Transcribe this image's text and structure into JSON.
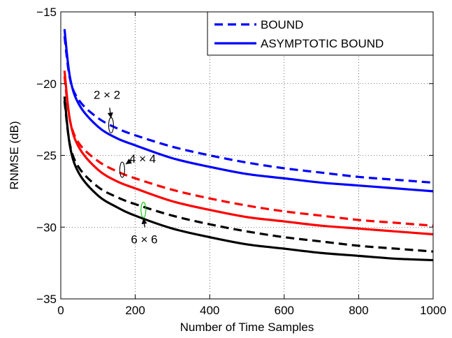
{
  "chart_data": {
    "type": "line",
    "xlabel": "Number of Time Samples",
    "ylabel": "RNMSE (dB)",
    "xlim": [
      0,
      1000
    ],
    "ylim": [
      -35,
      -15
    ],
    "xticks": [
      0,
      200,
      400,
      600,
      800,
      1000
    ],
    "yticks": [
      -35,
      -30,
      -25,
      -20,
      -15
    ],
    "grid": true,
    "legend_position": "top-right",
    "legend": [
      {
        "label": "BOUND",
        "style": "dashed"
      },
      {
        "label": "ASYMPTOTIC BOUND",
        "style": "solid"
      }
    ],
    "x": [
      10,
      25,
      50,
      100,
      150,
      200,
      300,
      400,
      500,
      600,
      700,
      800,
      900,
      1000
    ],
    "series": [
      {
        "group": "2 × 2",
        "style": "dashed",
        "color": "#0000ff",
        "values": [
          -16.7,
          -19.7,
          -21.2,
          -22.4,
          -23.1,
          -23.6,
          -24.4,
          -25.0,
          -25.5,
          -25.9,
          -26.2,
          -26.5,
          -26.7,
          -26.9
        ]
      },
      {
        "group": "2 × 2",
        "style": "solid",
        "color": "#0000ff",
        "values": [
          -16.2,
          -19.6,
          -21.5,
          -23.0,
          -23.8,
          -24.3,
          -25.2,
          -25.8,
          -26.3,
          -26.6,
          -26.9,
          -27.1,
          -27.3,
          -27.5
        ]
      },
      {
        "group": "4 × 4",
        "style": "dashed",
        "color": "#ff0000",
        "values": [
          -19.5,
          -22.6,
          -24.2,
          -25.4,
          -26.1,
          -26.6,
          -27.4,
          -28.0,
          -28.5,
          -28.9,
          -29.2,
          -29.5,
          -29.7,
          -29.9
        ]
      },
      {
        "group": "4 × 4",
        "style": "solid",
        "color": "#ff0000",
        "values": [
          -19.1,
          -22.6,
          -24.5,
          -26.0,
          -26.8,
          -27.3,
          -28.2,
          -28.8,
          -29.3,
          -29.6,
          -29.9,
          -30.1,
          -30.3,
          -30.5
        ]
      },
      {
        "group": "6 × 6",
        "style": "dashed",
        "color": "#000000",
        "values": [
          -21.2,
          -24.3,
          -25.9,
          -27.2,
          -27.9,
          -28.4,
          -29.2,
          -29.8,
          -30.3,
          -30.7,
          -31.0,
          -31.3,
          -31.5,
          -31.7
        ]
      },
      {
        "group": "6 × 6",
        "style": "solid",
        "color": "#000000",
        "values": [
          -20.9,
          -24.4,
          -26.3,
          -27.8,
          -28.6,
          -29.2,
          -30.1,
          -30.7,
          -31.2,
          -31.5,
          -31.8,
          -32.0,
          -32.2,
          -32.3
        ]
      }
    ],
    "annotations": [
      {
        "text": "2 × 2",
        "x": 135,
        "y": -22.9,
        "color": "#000000"
      },
      {
        "text": "4 × 4",
        "x": 165,
        "y": -26.0,
        "color": "#000000"
      },
      {
        "text": "6 × 6",
        "x": 222,
        "y": -28.8,
        "color": "#00cc00"
      }
    ]
  }
}
